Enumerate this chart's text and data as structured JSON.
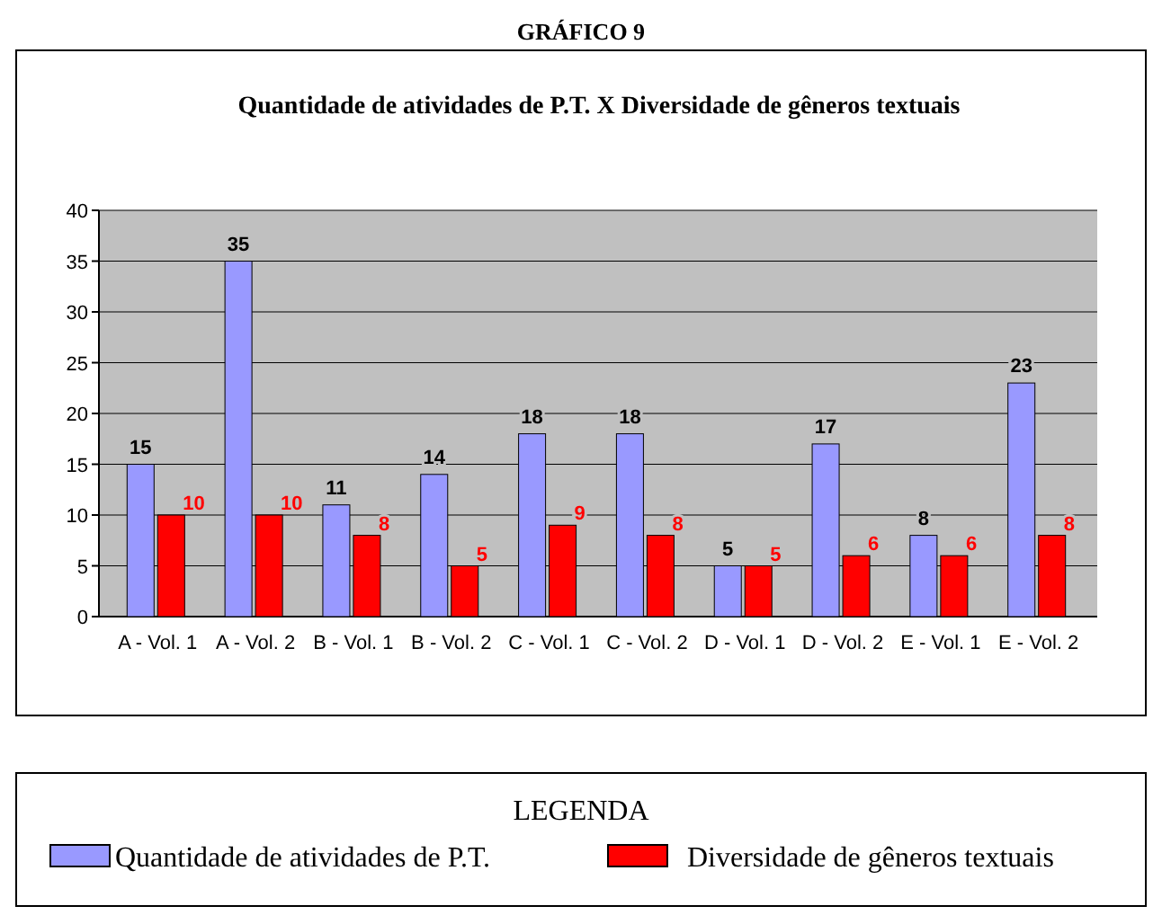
{
  "chart_data": {
    "type": "bar",
    "title": "GRÁFICO 9",
    "subtitle": "Quantidade de atividades de P.T. X Diversidade de gêneros textuais",
    "legend_title": "LEGENDA",
    "categories": [
      "A - Vol. 1",
      "A - Vol. 2",
      "B - Vol. 1",
      "B - Vol. 2",
      "C - Vol. 1",
      "C - Vol. 2",
      "D - Vol. 1",
      "D - Vol. 2",
      "E - Vol. 1",
      "E - Vol. 2"
    ],
    "series": [
      {
        "name": "Quantidade de atividades de P.T.",
        "color": "#9999ff",
        "values": [
          15,
          35,
          11,
          14,
          18,
          18,
          5,
          17,
          8,
          23
        ]
      },
      {
        "name": "Diversidade de gêneros textuais",
        "color": "#ff0000",
        "values": [
          10,
          10,
          8,
          5,
          9,
          8,
          5,
          6,
          6,
          8
        ]
      }
    ],
    "ylim": [
      0,
      40
    ],
    "yticks": [
      0,
      5,
      10,
      15,
      20,
      25,
      30,
      35,
      40
    ],
    "grid": "y",
    "data_labels": true,
    "legend": "bottom"
  }
}
